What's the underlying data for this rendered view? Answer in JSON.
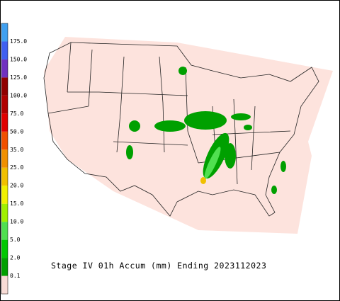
{
  "title": "Stage IV 01h Accum (mm) Ending 2023112023",
  "legend": {
    "below_color": "#f8dcd6",
    "levels": [
      {
        "label": "0.1",
        "color": "#00a000"
      },
      {
        "label": "2.0",
        "color": "#00c800"
      },
      {
        "label": "5.0",
        "color": "#50e050"
      },
      {
        "label": "10.0",
        "color": "#a0f000"
      },
      {
        "label": "15.0",
        "color": "#f0f000"
      },
      {
        "label": "20.0",
        "color": "#f0c000"
      },
      {
        "label": "25.0",
        "color": "#f09000"
      },
      {
        "label": "35.0",
        "color": "#f05000"
      },
      {
        "label": "50.0",
        "color": "#e00000"
      },
      {
        "label": "75.0",
        "color": "#b00000"
      },
      {
        "label": "100.0",
        "color": "#900000"
      },
      {
        "label": "125.0",
        "color": "#7030c0"
      },
      {
        "label": "150.0",
        "color": "#4060f0"
      },
      {
        "label": "175.0",
        "color": "#40a0f0"
      }
    ]
  }
}
